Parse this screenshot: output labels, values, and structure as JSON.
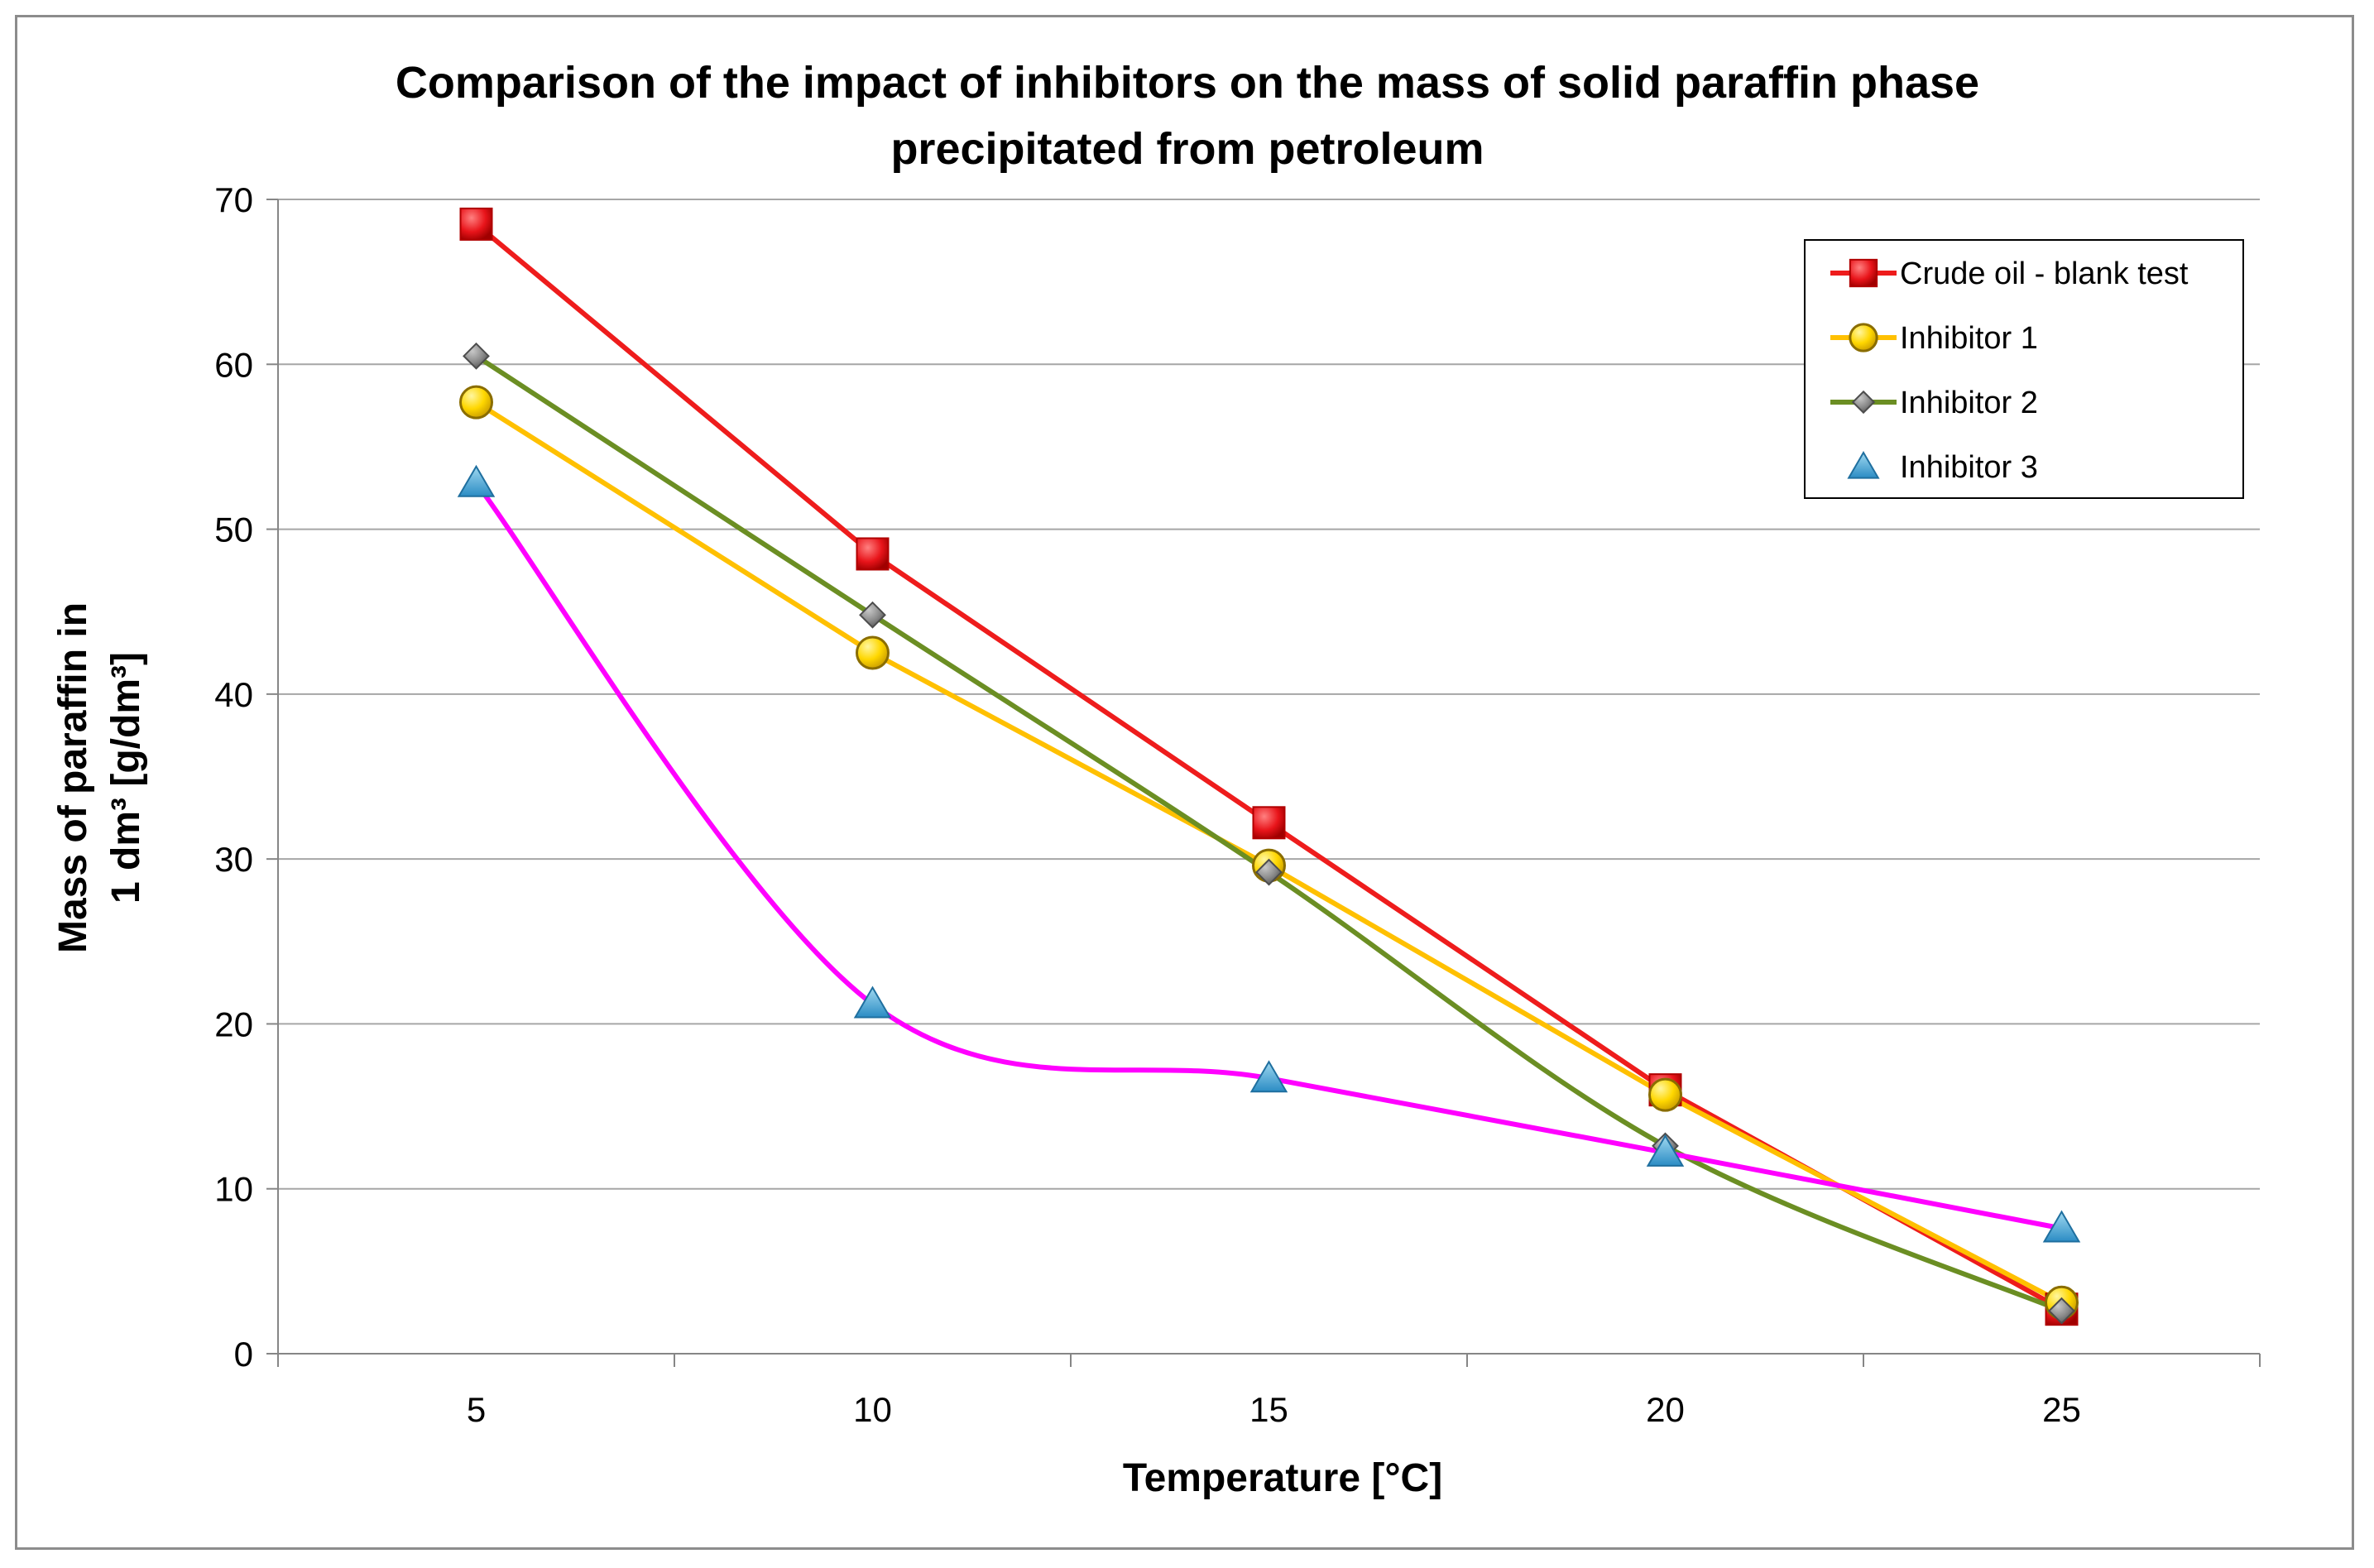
{
  "chart_data": {
    "type": "line",
    "title_lines": [
      "Comparison of the impact of inhibitors on the mass of solid paraffin phase",
      "precipitated from petroleum"
    ],
    "xlabel": "Temperature [°C]",
    "ylabel_lines": [
      "Mass of paraffin in",
      "1 dm³ [g/dm³]"
    ],
    "x": [
      5,
      10,
      15,
      20,
      25
    ],
    "x_tick_labels": [
      "5",
      "10",
      "15",
      "20",
      "25"
    ],
    "xlim": [
      2.5,
      27.5
    ],
    "ylim": [
      0,
      70
    ],
    "y_ticks": [
      0,
      10,
      20,
      30,
      40,
      50,
      60,
      70
    ],
    "grid": true,
    "legend_position": "top-right",
    "series": [
      {
        "name": "Crude oil - blank test",
        "values": [
          68.5,
          48.5,
          32.2,
          16.0,
          2.7
        ],
        "color": "#ee1c1c",
        "marker": "square",
        "marker_color": "#e8141a",
        "smooth": false
      },
      {
        "name": "Inhibitor 1",
        "values": [
          57.7,
          42.5,
          29.6,
          15.7,
          3.1
        ],
        "color": "#ffc000",
        "marker": "circle",
        "marker_color": "#ffd700",
        "smooth": false
      },
      {
        "name": "Inhibitor 2",
        "values": [
          60.5,
          44.8,
          29.2,
          12.6,
          2.6
        ],
        "color": "#6b8e23",
        "marker": "diamond",
        "marker_color": "#8a8a8a",
        "smooth": true
      },
      {
        "name": "Inhibitor 3",
        "values": [
          52.8,
          21.2,
          16.7,
          12.2,
          7.6
        ],
        "color": "#ff00ff",
        "marker": "triangle",
        "marker_color": "#3399cc",
        "smooth": true
      }
    ]
  }
}
